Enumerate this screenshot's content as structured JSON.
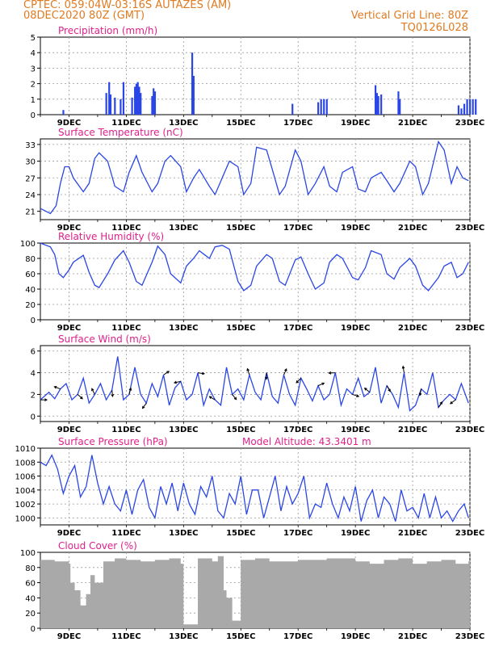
{
  "header": {
    "line1_left": "CPTEC:   059:04W-03:16S   AUTAZES (AM)",
    "line2_left": "08DEC2020 80Z (GMT)",
    "line1_right": "Vertical Grid Line: 80Z",
    "line2_right": "TQ0126L028"
  },
  "colors": {
    "header": "#e07a20",
    "title": "#e0208a",
    "series": "#2a46e6",
    "cloud": "#a9a9a9",
    "grid": "#999999"
  },
  "chart_data": [
    {
      "type": "bar",
      "title": "Precipitation (mm/h)",
      "ylim": [
        0,
        5
      ],
      "yticks": [
        0,
        1,
        2,
        3,
        4,
        5
      ],
      "xtick_labels": [
        "9DEC",
        "11DEC",
        "13DEC",
        "15DEC",
        "17DEC",
        "19DEC",
        "21DEC",
        "23DEC"
      ],
      "x": [
        0.8,
        2.3,
        2.4,
        2.45,
        2.6,
        2.8,
        2.9,
        3.2,
        3.3,
        3.35,
        3.4,
        3.45,
        3.5,
        3.9,
        3.95,
        4.0,
        5.3,
        5.35,
        8.8,
        9.7,
        9.8,
        9.9,
        10.0,
        11.7,
        11.75,
        11.8,
        11.9,
        12.5,
        12.55,
        14.6,
        14.7,
        14.8,
        14.9,
        15.0,
        15.1,
        15.2
      ],
      "values": [
        0.3,
        1.4,
        2.1,
        1.3,
        1.1,
        1.0,
        2.1,
        1.1,
        1.8,
        2.0,
        2.1,
        1.8,
        1.4,
        1.2,
        1.7,
        1.5,
        4.0,
        2.5,
        0.7,
        0.8,
        1.0,
        1.0,
        1.0,
        1.9,
        1.4,
        1.2,
        1.3,
        1.5,
        1.0,
        0.6,
        0.4,
        0.7,
        1.0,
        1.0,
        1.0,
        1.0
      ]
    },
    {
      "type": "line",
      "title": "Surface Temperature (nC)",
      "ylim": [
        19.5,
        34
      ],
      "yticks": [
        21,
        24,
        27,
        30,
        33
      ],
      "xtick_labels": [
        "9DEC",
        "11DEC",
        "13DEC",
        "15DEC",
        "17DEC",
        "19DEC",
        "21DEC",
        "23DEC"
      ],
      "x": [
        0,
        0.35,
        0.55,
        0.7,
        0.85,
        1.0,
        1.15,
        1.5,
        1.7,
        1.9,
        2.05,
        2.35,
        2.6,
        2.9,
        3.1,
        3.35,
        3.55,
        3.9,
        4.1,
        4.35,
        4.55,
        4.9,
        5.1,
        5.35,
        5.55,
        5.9,
        6.1,
        6.35,
        6.6,
        6.9,
        7.1,
        7.35,
        7.55,
        7.9,
        8.1,
        8.35,
        8.55,
        8.9,
        9.1,
        9.35,
        9.6,
        9.9,
        10.1,
        10.35,
        10.55,
        10.9,
        11.1,
        11.35,
        11.55,
        11.9,
        12.1,
        12.35,
        12.55,
        12.9,
        13.1,
        13.35,
        13.55,
        13.9,
        14.1,
        14.35,
        14.55,
        14.75,
        14.95
      ],
      "values": [
        21.5,
        20.6,
        22,
        26,
        29,
        29,
        27,
        24.5,
        26,
        30.5,
        31.5,
        30,
        25.5,
        24.5,
        28,
        31,
        28,
        24.5,
        26,
        30,
        31,
        29,
        24.5,
        27,
        28.5,
        25.5,
        24,
        27,
        30,
        29,
        24,
        26,
        32.5,
        32,
        28.5,
        24,
        25.5,
        32,
        30,
        24,
        26,
        29,
        25.5,
        24.5,
        28,
        29,
        25,
        24.5,
        27,
        28,
        26.5,
        24.5,
        26,
        30,
        29,
        24,
        26,
        33.5,
        32,
        26,
        29,
        27,
        26.5
      ]
    },
    {
      "type": "line",
      "title": "Relative Humidity (%)",
      "ylim": [
        0,
        100
      ],
      "yticks": [
        0,
        20,
        40,
        60,
        80,
        100
      ],
      "xtick_labels": [
        "9DEC",
        "11DEC",
        "13DEC",
        "15DEC",
        "17DEC",
        "19DEC",
        "21DEC",
        "23DEC"
      ],
      "x": [
        0,
        0.35,
        0.5,
        0.65,
        0.8,
        1.0,
        1.15,
        1.5,
        1.7,
        1.9,
        2.05,
        2.35,
        2.6,
        2.9,
        3.1,
        3.35,
        3.55,
        3.9,
        4.1,
        4.35,
        4.55,
        4.9,
        5.1,
        5.35,
        5.55,
        5.9,
        6.1,
        6.35,
        6.6,
        6.9,
        7.1,
        7.35,
        7.55,
        7.9,
        8.1,
        8.35,
        8.55,
        8.9,
        9.1,
        9.35,
        9.6,
        9.9,
        10.1,
        10.35,
        10.55,
        10.9,
        11.1,
        11.35,
        11.55,
        11.9,
        12.1,
        12.35,
        12.55,
        12.9,
        13.1,
        13.35,
        13.55,
        13.9,
        14.1,
        14.35,
        14.55,
        14.75,
        14.95
      ],
      "values": [
        100,
        95,
        85,
        60,
        55,
        65,
        75,
        84,
        62,
        45,
        42,
        60,
        78,
        90,
        75,
        50,
        45,
        75,
        96,
        85,
        60,
        48,
        70,
        80,
        90,
        80,
        95,
        97,
        92,
        50,
        38,
        45,
        70,
        85,
        80,
        50,
        45,
        78,
        82,
        60,
        40,
        48,
        75,
        85,
        80,
        55,
        52,
        68,
        90,
        85,
        60,
        53,
        68,
        80,
        70,
        45,
        38,
        55,
        70,
        75,
        55,
        60,
        75
      ]
    },
    {
      "type": "line",
      "title": "Surface Wind (m/s)",
      "ylim": [
        -0.5,
        6.5
      ],
      "yticks": [
        0,
        2,
        4,
        6
      ],
      "xtick_labels": [
        "9DEC",
        "11DEC",
        "13DEC",
        "15DEC",
        "17DEC",
        "19DEC",
        "21DEC",
        "23DEC"
      ],
      "x": [
        0,
        0.3,
        0.5,
        0.7,
        0.9,
        1.1,
        1.3,
        1.5,
        1.7,
        1.9,
        2.1,
        2.3,
        2.5,
        2.7,
        2.9,
        3.1,
        3.3,
        3.5,
        3.7,
        3.9,
        4.1,
        4.3,
        4.5,
        4.7,
        4.9,
        5.1,
        5.3,
        5.5,
        5.7,
        5.9,
        6.1,
        6.3,
        6.5,
        6.7,
        6.9,
        7.1,
        7.3,
        7.5,
        7.7,
        7.9,
        8.1,
        8.3,
        8.5,
        8.7,
        8.9,
        9.1,
        9.3,
        9.5,
        9.7,
        9.9,
        10.1,
        10.3,
        10.5,
        10.7,
        10.9,
        11.1,
        11.3,
        11.5,
        11.7,
        11.9,
        12.1,
        12.3,
        12.5,
        12.7,
        12.9,
        13.1,
        13.3,
        13.5,
        13.7,
        13.9,
        14.1,
        14.3,
        14.5,
        14.7,
        14.95
      ],
      "values": [
        1.5,
        2.2,
        1.6,
        2.5,
        3.0,
        1.5,
        2.0,
        3.5,
        1.2,
        2.0,
        3.0,
        1.5,
        2.4,
        5.5,
        1.5,
        2.0,
        4.5,
        2.0,
        1.2,
        3.0,
        1.8,
        3.8,
        1.0,
        2.6,
        3.2,
        1.5,
        2.0,
        4.0,
        1.0,
        2.5,
        1.5,
        1.0,
        4.5,
        2.0,
        2.5,
        1.5,
        3.8,
        2.2,
        1.5,
        4.0,
        1.8,
        1.2,
        3.8,
        2.0,
        1.0,
        3.5,
        2.5,
        1.4,
        2.8,
        1.5,
        2.0,
        4.0,
        1.0,
        2.5,
        2.0,
        3.5,
        1.8,
        2.2,
        4.5,
        1.2,
        2.8,
        2.0,
        0.8,
        4.0,
        0.5,
        1.0,
        2.5,
        2.0,
        4.0,
        0.8,
        1.5,
        2.0,
        1.5,
        3.0,
        1.2
      ]
    },
    {
      "type": "line",
      "title": "Surface Pressure (hPa)",
      "annotation": "Model Altitude: 43.3401 m",
      "ylim": [
        999,
        1010
      ],
      "yticks": [
        1000,
        1002,
        1004,
        1006,
        1008,
        1010
      ],
      "xtick_labels": [
        "9DEC",
        "11DEC",
        "13DEC",
        "15DEC",
        "17DEC",
        "19DEC",
        "21DEC",
        "23DEC"
      ],
      "x": [
        0,
        0.2,
        0.4,
        0.6,
        0.8,
        1.0,
        1.2,
        1.4,
        1.6,
        1.8,
        2.0,
        2.2,
        2.4,
        2.6,
        2.8,
        3.0,
        3.2,
        3.4,
        3.6,
        3.8,
        4.0,
        4.2,
        4.4,
        4.6,
        4.8,
        5.0,
        5.2,
        5.4,
        5.6,
        5.8,
        6.0,
        6.2,
        6.4,
        6.6,
        6.8,
        7.0,
        7.2,
        7.4,
        7.6,
        7.8,
        8.0,
        8.2,
        8.4,
        8.6,
        8.8,
        9.0,
        9.2,
        9.4,
        9.6,
        9.8,
        10.0,
        10.2,
        10.4,
        10.6,
        10.8,
        11.0,
        11.2,
        11.4,
        11.6,
        11.8,
        12.0,
        12.2,
        12.4,
        12.6,
        12.8,
        13.0,
        13.2,
        13.4,
        13.6,
        13.8,
        14.0,
        14.2,
        14.4,
        14.6,
        14.8,
        14.95
      ],
      "values": [
        1008,
        1007.5,
        1009,
        1007,
        1003.5,
        1006,
        1007.5,
        1003,
        1004.5,
        1009,
        1005,
        1002,
        1004.5,
        1002,
        1001,
        1004,
        1000.5,
        1004,
        1005.5,
        1001.5,
        1000,
        1004.5,
        1002,
        1005,
        1001,
        1005,
        1002,
        1000.5,
        1004.5,
        1003,
        1006,
        1001,
        1000,
        1003.5,
        1002,
        1006,
        1000.5,
        1004,
        1004,
        1000,
        1003,
        1006,
        1001,
        1004.5,
        1002,
        1003.5,
        1006,
        1000,
        1002,
        1001.5,
        1005,
        1002,
        1000,
        1003,
        1001,
        1004.5,
        999.5,
        1002.5,
        1004,
        1000,
        1003,
        1002,
        999.5,
        1004,
        1001,
        1001.5,
        1000,
        1003.5,
        1000,
        1003,
        1000,
        1001,
        999.5,
        1001,
        1002,
        1000
      ]
    },
    {
      "type": "bar",
      "title": "Cloud Cover (%)",
      "ylim": [
        0,
        100
      ],
      "yticks": [
        0,
        20,
        40,
        60,
        80,
        100
      ],
      "xtick_labels": [
        "9DEC",
        "11DEC",
        "13DEC",
        "15DEC",
        "17DEC",
        "19DEC",
        "21DEC",
        "23DEC"
      ],
      "x": [
        0,
        0.5,
        1.0,
        1.05,
        1.2,
        1.4,
        1.6,
        1.75,
        1.9,
        2.2,
        2.6,
        3.0,
        3.5,
        4.0,
        4.5,
        4.9,
        5.0,
        5.5,
        6.0,
        6.2,
        6.4,
        6.5,
        6.7,
        7.0,
        7.5,
        8.0,
        9.0,
        10.0,
        11.0,
        11.5,
        12.0,
        12.5,
        13.0,
        13.5,
        14.0,
        14.5,
        14.95
      ],
      "values": [
        90,
        88,
        85,
        60,
        50,
        30,
        45,
        70,
        60,
        88,
        92,
        90,
        88,
        90,
        92,
        85,
        5,
        92,
        88,
        95,
        50,
        40,
        10,
        90,
        92,
        88,
        90,
        92,
        88,
        85,
        90,
        92,
        85,
        88,
        90,
        85,
        88
      ]
    }
  ]
}
